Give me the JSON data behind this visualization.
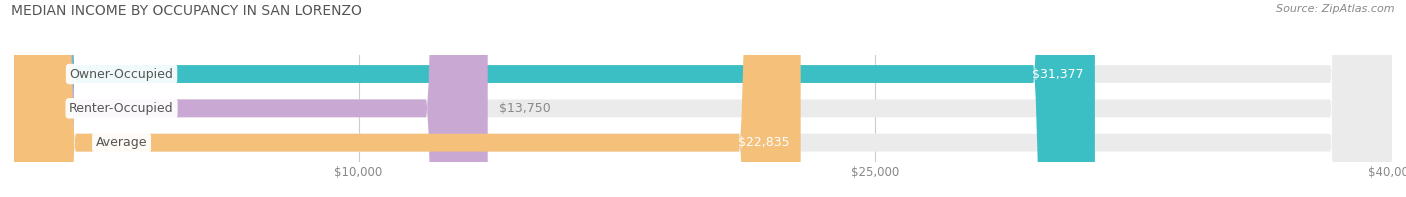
{
  "title": "MEDIAN INCOME BY OCCUPANCY IN SAN LORENZO",
  "source": "Source: ZipAtlas.com",
  "categories": [
    "Owner-Occupied",
    "Renter-Occupied",
    "Average"
  ],
  "values": [
    31377,
    13750,
    22835
  ],
  "bar_colors": [
    "#3bbfc4",
    "#c9a8d4",
    "#f5c07a"
  ],
  "bar_bg_color": "#ebebeb",
  "value_labels": [
    "$31,377",
    "$13,750",
    "$22,835"
  ],
  "xlim": [
    0,
    40000
  ],
  "xticks": [
    10000,
    25000,
    40000
  ],
  "xtick_labels": [
    "$10,000",
    "$25,000",
    "$40,000"
  ],
  "title_fontsize": 10,
  "source_fontsize": 8,
  "bar_label_fontsize": 9,
  "value_label_fontsize": 9,
  "figsize": [
    14.06,
    1.97
  ],
  "dpi": 100,
  "background_color": "#ffffff",
  "bar_height": 0.52,
  "grid_color": "#cccccc"
}
